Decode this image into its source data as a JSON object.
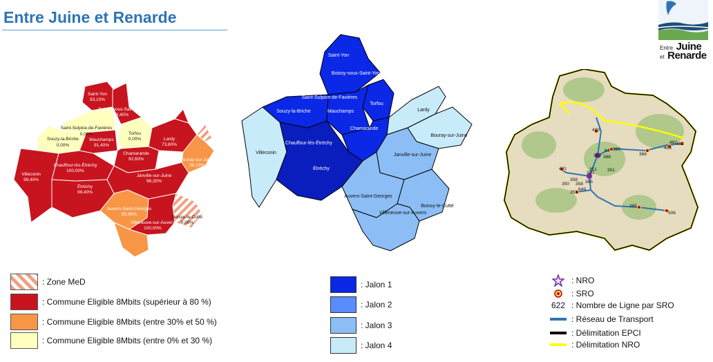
{
  "header": {
    "title": "Entre Juine et Renarde"
  },
  "logo": {
    "line1_small": "Entre",
    "line1_big": "Juine",
    "line2_small": "et",
    "line2_big": "Renarde"
  },
  "colors": {
    "title": "#2e74b5",
    "eligible_high": "#c8141e",
    "eligible_mid": "#f79646",
    "eligible_low": "#ffffbe",
    "zone_med_stripe": "#f0a080",
    "jalon1": "#0a28e6",
    "jalon2": "#5a8cff",
    "jalon3": "#8cbef5",
    "jalon4": "#c8ebfa",
    "jalon_core": "#0a1ebe",
    "reseau_transport": "#2e75b6",
    "delimitation_nro": "#ffff00",
    "delimitation_epci": "#000000",
    "nro": "#7030a0",
    "sro": "#c00000"
  },
  "map_eligibility": {
    "communes": [
      {
        "name": "Saint-Yon",
        "value": "93,10%"
      },
      {
        "name": "Boissy-sous-Saint-Yon",
        "value": "98,40%"
      },
      {
        "name": "Saint-Sulpice-de-Favières",
        "value": "0,00%"
      },
      {
        "name": "Souzy-la-Briche",
        "value": "0,00%"
      },
      {
        "name": "Mauchamps",
        "value": "91,40%"
      },
      {
        "name": "Torfou",
        "value": "0,00%"
      },
      {
        "name": "Lardy",
        "value": "73,80%"
      },
      {
        "name": "Bouray-sur-Juine",
        "value": "36,10%"
      },
      {
        "name": "Chamarande",
        "value": "92,60%"
      },
      {
        "name": "Villeconin",
        "value": "99,40%"
      },
      {
        "name": "Chauffour-lès-Étréchy",
        "value": "100,00%"
      },
      {
        "name": "Étréchy",
        "value": "99,40%"
      },
      {
        "name": "Janville-sur-Juine",
        "value": "96,30%"
      },
      {
        "name": "Auvers-Saint-Georges",
        "value": "55,90%"
      },
      {
        "name": "Boissy-le-Cutté",
        "value": "0,00%"
      },
      {
        "name": "Villeneuve-sur-Auvers",
        "value": "100,00%"
      }
    ]
  },
  "map_jalons": {
    "communes": [
      "Saint-Yon",
      "Boissy-sous-Saint-Yon",
      "Saint-Sulpice-de-Favières",
      "Souzy-la-Briche",
      "Mauchamps",
      "Torfou",
      "Lardy",
      "Chamarande",
      "Bouray-sur-Juine",
      "Villeconin",
      "Chauffour-lès-Étréchy",
      "Étréchy",
      "Janville-sur-Juine",
      "Auvers-Saint-Georges",
      "Boissy-le-Cutté",
      "Villeneuve-sur-Auvers"
    ]
  },
  "map_network": {
    "sro_counts": [
      "490",
      "462",
      "433",
      "462",
      "366",
      "360",
      "64",
      "388",
      "360",
      "491",
      "351",
      "380",
      "385",
      "350",
      "358",
      "358",
      "351",
      "649",
      "385",
      "506",
      "351"
    ]
  },
  "legend_eligibility": {
    "zone_med": ": Zone MeD",
    "high": ": Commune Eligible  8Mbits (supérieur à 80 %)",
    "mid": ": Commune Eligible  8Mbits (entre 30% et 50 %)",
    "low": ": Commune Eligible  8Mbits (entre 0% et 30 %)"
  },
  "legend_jalons": {
    "j1": ": Jalon 1",
    "j2": ": Jalon 2",
    "j3": ": Jalon 3",
    "j4": ": Jalon 4"
  },
  "legend_network": {
    "nro": ": NRO",
    "sro": ": SRO",
    "count_sample": "622",
    "count_label": ": Nombre de Ligne par SRO",
    "transport": ": Réseau de Transport",
    "epci": ": Délimitation EPCI",
    "nro_limit": ": Délimitation NRO"
  }
}
